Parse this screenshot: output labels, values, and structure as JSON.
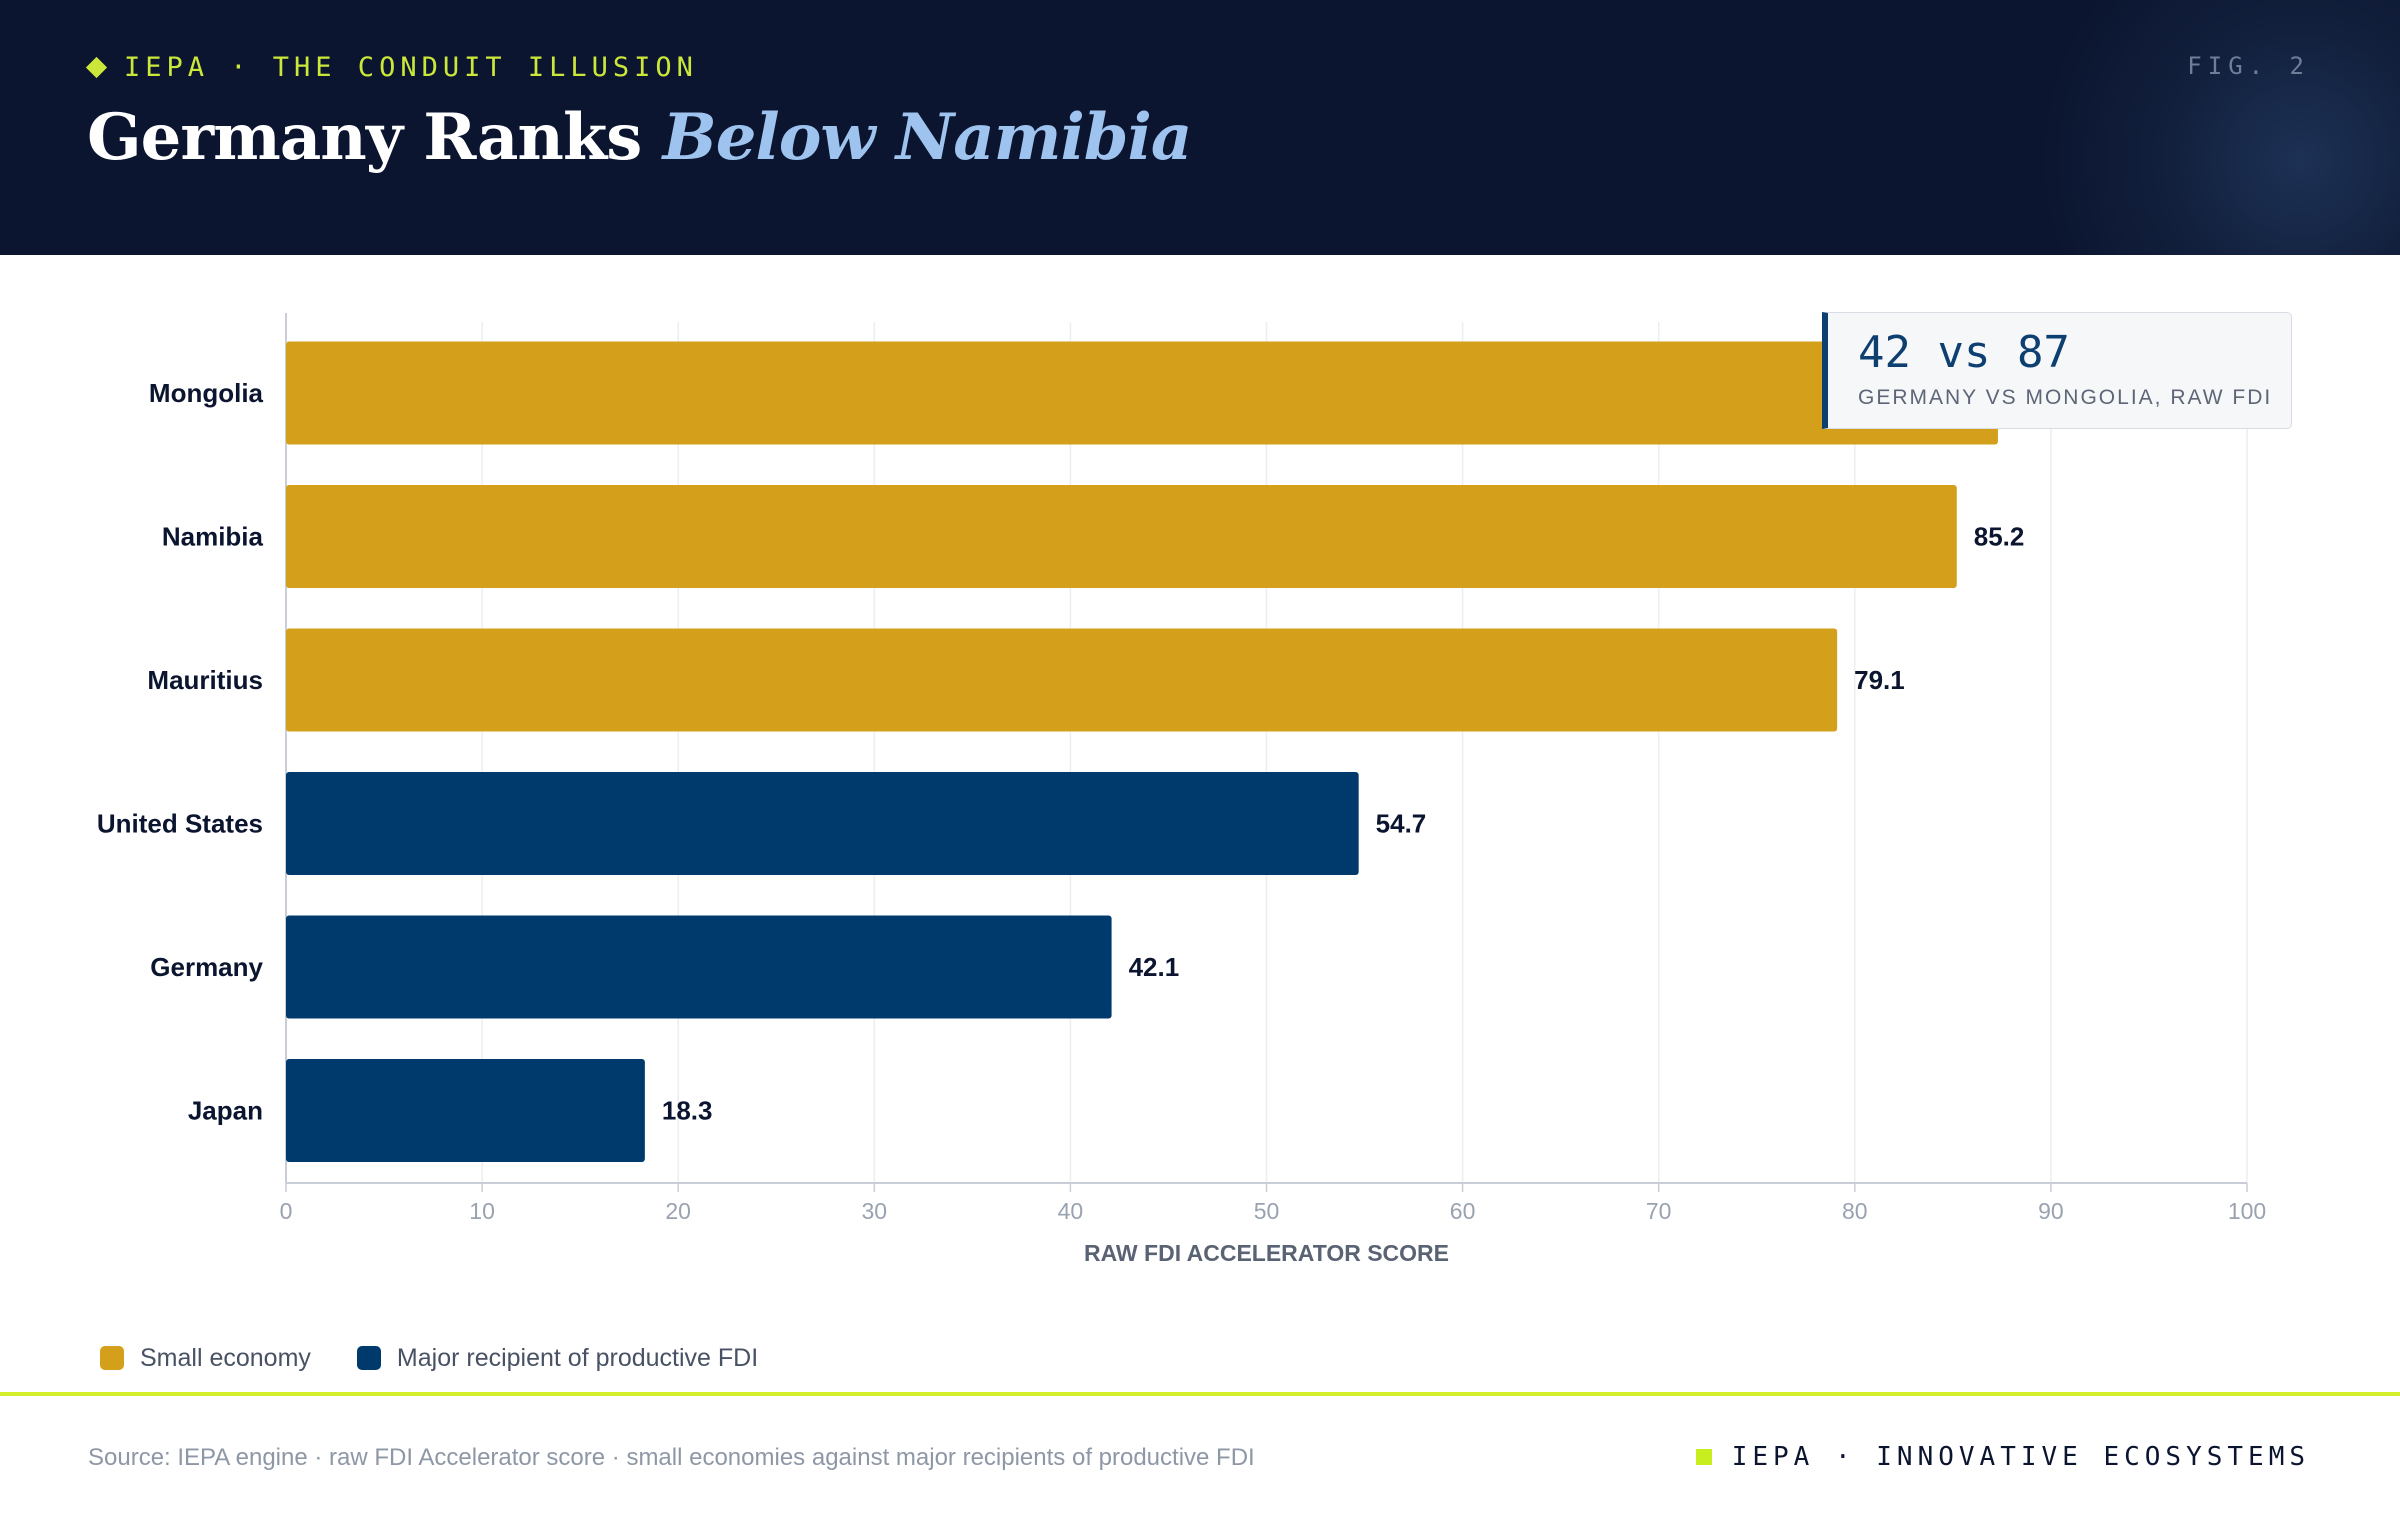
{
  "header": {
    "kicker": "IEPA · THE CONDUIT ILLUSION",
    "fig_label": "FIG. 2",
    "title_main": "Germany Ranks",
    "title_accent": "Below Namibia"
  },
  "callout": {
    "value": "42 vs 87",
    "caption": "GERMANY VS MONGOLIA, RAW FDI"
  },
  "colors": {
    "small_economy": "#d4a01b",
    "major_recipient": "#003a6c",
    "accent": "#d4ee2a",
    "header_bg": "#0b1530"
  },
  "legend": [
    {
      "label": "Small economy",
      "color": "#d4a01b"
    },
    {
      "label": "Major recipient of productive FDI",
      "color": "#003a6c"
    }
  ],
  "chart_data": {
    "type": "bar",
    "orientation": "horizontal",
    "title": "Germany Ranks Below Namibia",
    "xlabel": "RAW FDI ACCELERATOR SCORE",
    "ylabel": "",
    "xlim": [
      0,
      100
    ],
    "xticks": [
      "0",
      "10",
      "20",
      "30",
      "40",
      "50",
      "60",
      "70",
      "80",
      "90",
      "100"
    ],
    "grid": true,
    "categories": [
      "Mongolia",
      "Namibia",
      "Mauritius",
      "United States",
      "Germany",
      "Japan"
    ],
    "values": [
      87.3,
      85.2,
      79.1,
      54.7,
      42.1,
      18.3
    ],
    "value_labels": [
      "",
      "85.2",
      "79.1",
      "54.7",
      "42.1",
      "18.3"
    ],
    "groups": [
      "small",
      "small",
      "small",
      "major",
      "major",
      "major"
    ]
  },
  "footer": {
    "source": "Source: IEPA engine · raw FDI Accelerator score · small economies against major recipients of productive FDI",
    "brand": "IEPA · INNOVATIVE ECOSYSTEMS"
  }
}
